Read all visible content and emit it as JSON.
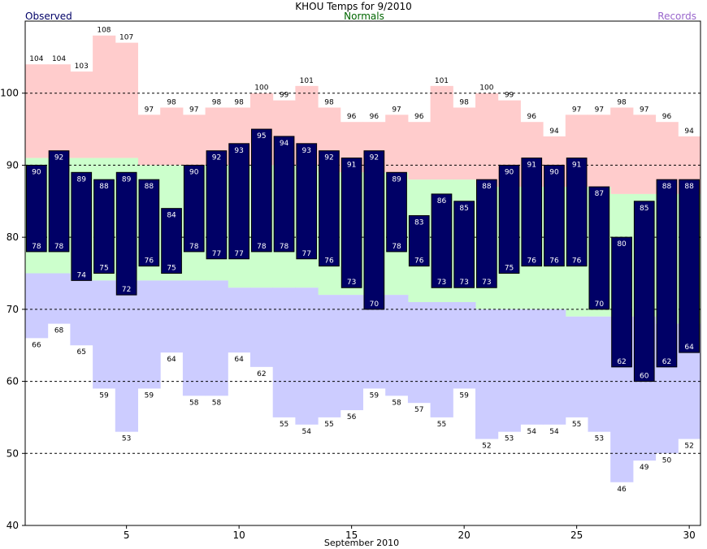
{
  "chart_data": {
    "type": "bar",
    "title": "KHOU Temps for 9/2010",
    "xlabel": "September 2010",
    "ylabel": "",
    "legend": {
      "observed": "Observed",
      "normals": "Normals",
      "records": "Records",
      "placement": "top"
    },
    "colors": {
      "observed": "#000066",
      "normals": "#ccffcc",
      "records_high": "#ffcccc",
      "records_low": "#ccccff",
      "normals_label": "#006600",
      "records_label": "#9966cc",
      "observed_label": "#000066"
    },
    "ylim": [
      40,
      110
    ],
    "yticks": [
      "40",
      "50",
      "60",
      "70",
      "80",
      "90",
      "100"
    ],
    "xticks": [
      "5",
      "10",
      "15",
      "20",
      "25",
      "30"
    ],
    "grid": "dashed horizontal at 50, 60, 70, 80, 90, 100",
    "days": [
      1,
      2,
      3,
      4,
      5,
      6,
      7,
      8,
      9,
      10,
      11,
      12,
      13,
      14,
      15,
      16,
      17,
      18,
      19,
      20,
      21,
      22,
      23,
      24,
      25,
      26,
      27,
      28,
      29,
      30
    ],
    "record_high": [
      104,
      104,
      103,
      108,
      107,
      97,
      98,
      97,
      98,
      98,
      100,
      99,
      101,
      98,
      96,
      96,
      97,
      96,
      101,
      98,
      100,
      99,
      96,
      94,
      97,
      97,
      98,
      97,
      96,
      94
    ],
    "record_low": [
      66,
      68,
      65,
      59,
      53,
      59,
      64,
      58,
      58,
      64,
      62,
      55,
      54,
      55,
      56,
      59,
      58,
      57,
      55,
      59,
      52,
      53,
      54,
      54,
      55,
      53,
      46,
      49,
      50,
      52
    ],
    "normal_high": [
      91,
      91,
      91,
      91,
      91,
      90,
      90,
      90,
      90,
      90,
      90,
      90,
      90,
      89,
      89,
      89,
      89,
      88,
      88,
      88,
      87,
      87,
      87,
      87,
      87,
      87,
      86,
      86,
      86,
      86
    ],
    "normal_low": [
      75,
      75,
      74,
      74,
      74,
      74,
      74,
      74,
      74,
      73,
      73,
      73,
      73,
      72,
      72,
      72,
      72,
      71,
      71,
      71,
      70,
      70,
      70,
      70,
      69,
      69,
      69,
      69,
      68,
      68
    ],
    "observed_high": [
      90,
      92,
      89,
      88,
      89,
      88,
      84,
      90,
      92,
      93,
      95,
      94,
      93,
      92,
      91,
      92,
      89,
      83,
      86,
      85,
      88,
      90,
      91,
      90,
      91,
      87,
      80,
      85,
      88,
      88
    ],
    "observed_low": [
      78,
      78,
      74,
      75,
      72,
      76,
      75,
      78,
      77,
      77,
      78,
      78,
      77,
      76,
      73,
      70,
      78,
      76,
      73,
      73,
      73,
      75,
      76,
      76,
      76,
      70,
      62,
      60,
      62,
      64
    ]
  }
}
